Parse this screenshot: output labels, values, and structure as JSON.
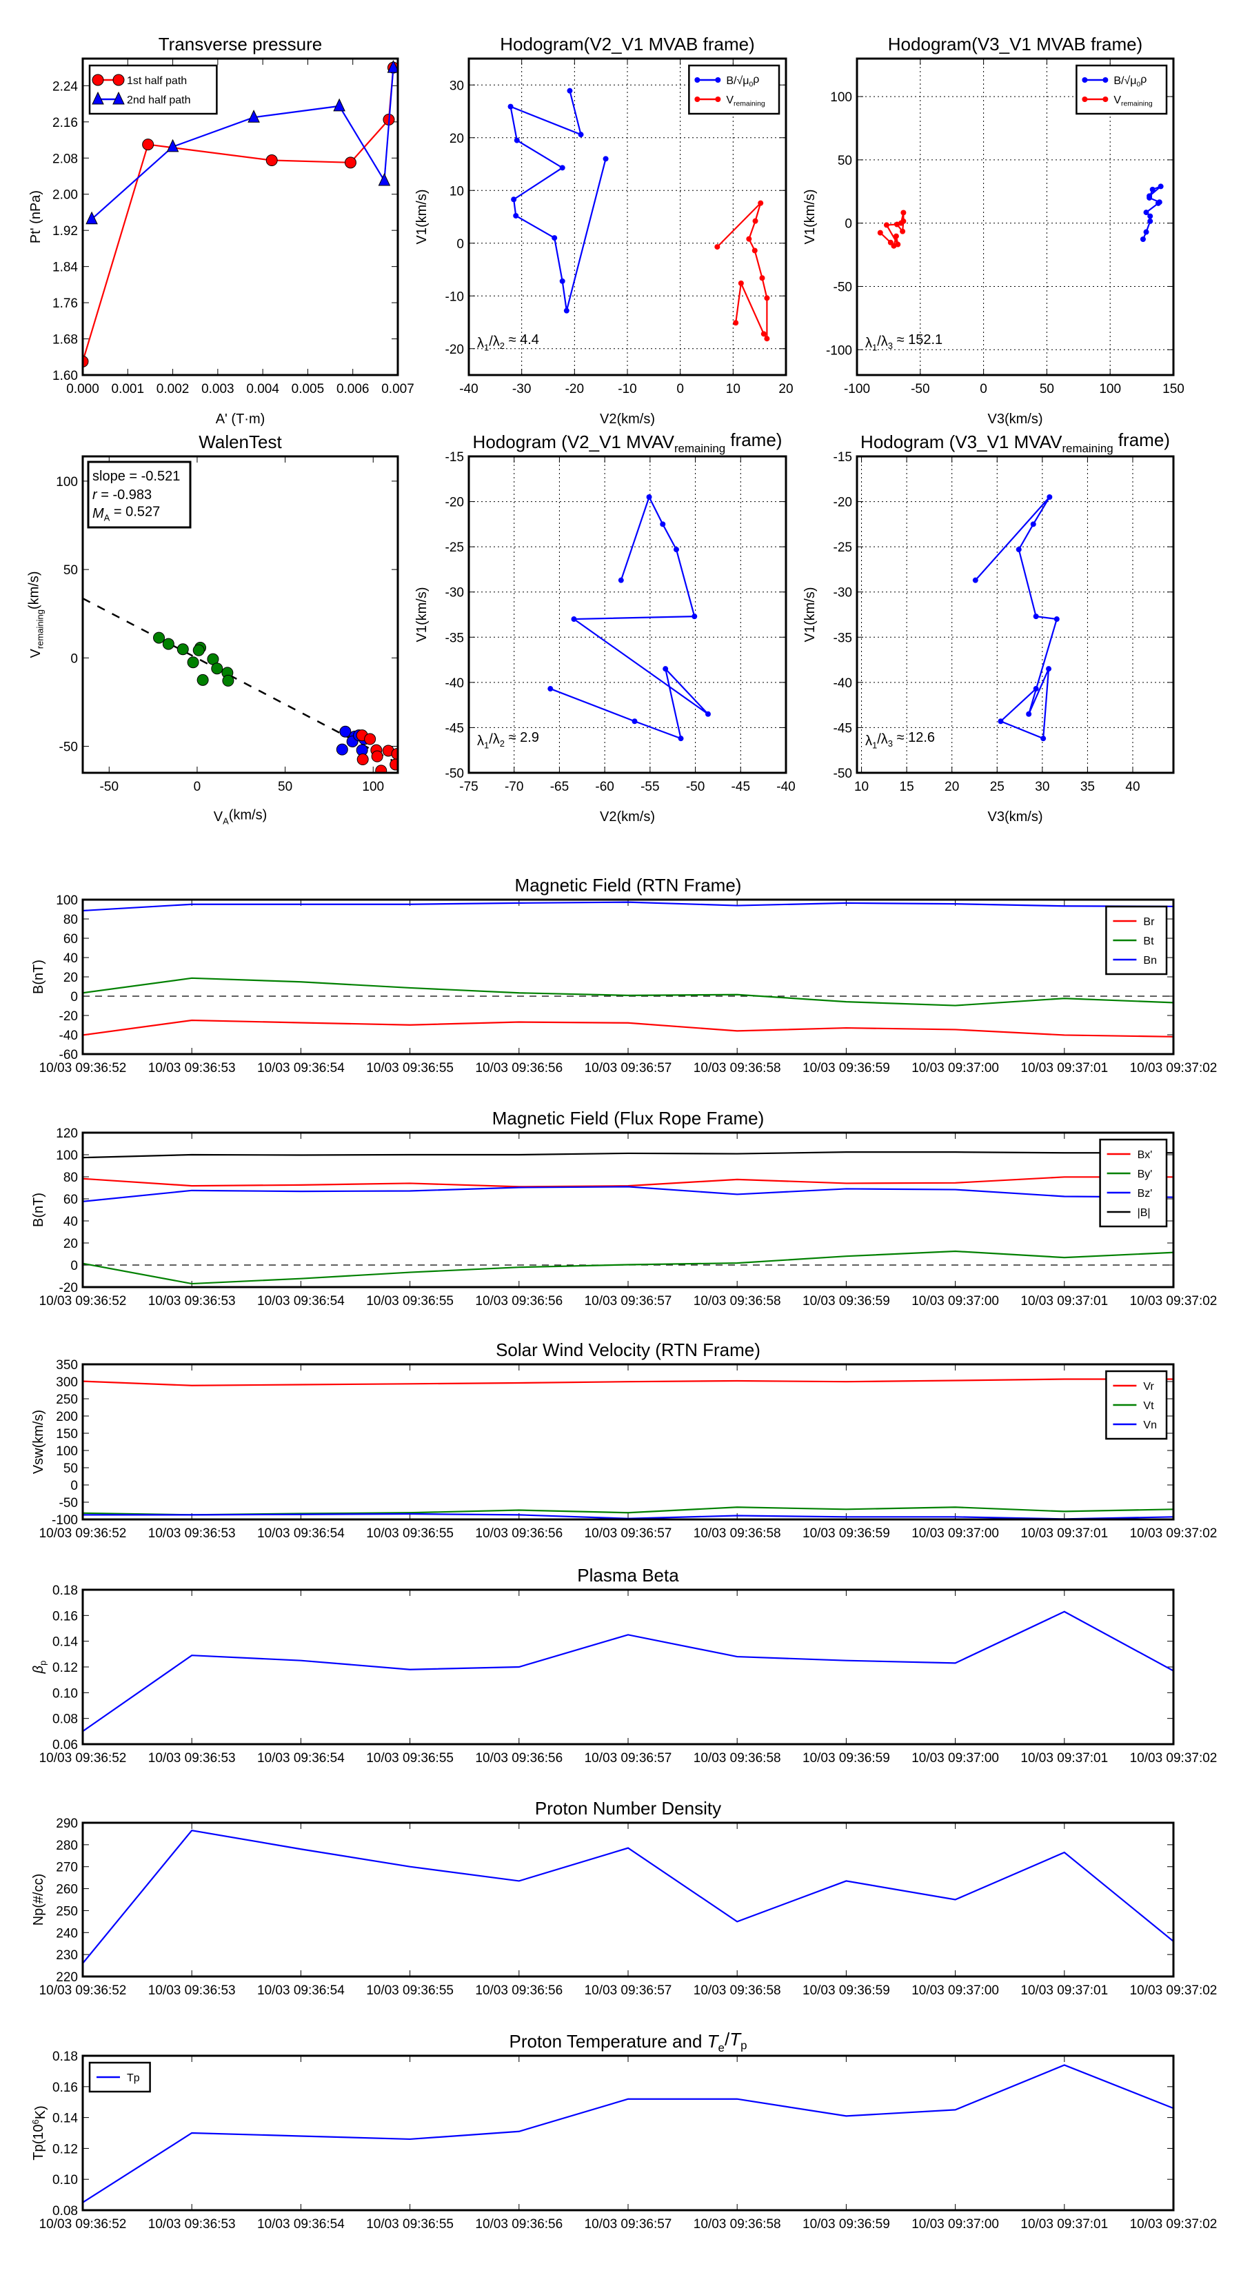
{
  "time_axis": [
    "10/03 09:36:52",
    "10/03 09:36:53",
    "10/03 09:36:54",
    "10/03 09:36:55",
    "10/03 09:36:56",
    "10/03 09:36:57",
    "10/03 09:36:58",
    "10/03 09:36:59",
    "10/03 09:37:00",
    "10/03 09:37:01",
    "10/03 09:37:02"
  ],
  "chart_data": [
    {
      "id": "tp",
      "type": "line",
      "title": "Transverse pressure",
      "xlabel": "A' (T·m)",
      "ylabel": "Pt' (nPa)",
      "xlim": [
        0,
        0.007
      ],
      "ylim": [
        1.6,
        2.3
      ],
      "grid": false,
      "legend": "top-left",
      "xticks": [
        "0.000",
        "0.001",
        "0.002",
        "0.003",
        "0.004",
        "0.005",
        "0.006",
        "0.007"
      ],
      "yticks": [
        "1.60",
        "1.68",
        "1.76",
        "1.84",
        "1.92",
        "2.00",
        "2.08",
        "2.16",
        "2.24"
      ],
      "series": [
        {
          "name": "1st half path",
          "color": "#ff0000",
          "marker": "o",
          "x": [
            0.0,
            0.00145,
            0.0042,
            0.00595,
            0.0068,
            0.0069
          ],
          "y": [
            1.63,
            2.11,
            2.075,
            2.07,
            2.165,
            2.28
          ]
        },
        {
          "name": "2nd half path",
          "color": "#0000ff",
          "marker": "^",
          "x": [
            0.0002,
            0.002,
            0.0038,
            0.0057,
            0.0067,
            0.0069
          ],
          "y": [
            1.945,
            2.105,
            2.17,
            2.195,
            2.03,
            2.28
          ]
        }
      ]
    },
    {
      "id": "h1",
      "type": "line",
      "title": "Hodogram(V2_V1 MVAB frame)",
      "xlabel": "V2(km/s)",
      "ylabel": "V1(km/s)",
      "xlim": [
        -40,
        20
      ],
      "ylim": [
        -25,
        35
      ],
      "grid": true,
      "legend": "top-right",
      "xticks": [
        "-40",
        "-30",
        "-20",
        "-10",
        "0",
        "10",
        "20"
      ],
      "yticks": [
        "-20",
        "-10",
        "0",
        "10",
        "20",
        "30"
      ],
      "annotation": [
        {
          "t": "λ"
        },
        {
          "t": "1",
          "s": "sub"
        },
        {
          "t": "/λ"
        },
        {
          "t": "2",
          "s": "sub"
        },
        {
          "t": " ≈ 4.4"
        }
      ],
      "series": [
        {
          "name": [
            {
              "t": "B/√μ"
            },
            {
              "t": "0",
              "s": "sub"
            },
            {
              "t": "ρ"
            }
          ],
          "color": "#0000ff",
          "marker": ".",
          "x": [
            -20.9,
            -18.8,
            -32.1,
            -30.9,
            -22.3,
            -31.5,
            -31.1,
            -23.8,
            -22.3,
            -21.5,
            -14.1
          ],
          "y": [
            28.9,
            20.6,
            25.9,
            19.5,
            14.3,
            8.3,
            5.2,
            1.0,
            -7.2,
            -12.8,
            16.0
          ]
        },
        {
          "name": [
            {
              "t": "V"
            },
            {
              "t": "remaining",
              "s": "sub"
            }
          ],
          "color": "#ff0000",
          "marker": ".",
          "x": [
            7.0,
            15.2,
            14.2,
            13.0,
            14.1,
            15.5,
            16.4,
            16.4,
            15.8,
            11.5,
            10.5
          ],
          "y": [
            -0.7,
            7.6,
            4.2,
            0.8,
            -1.4,
            -6.6,
            -10.4,
            -18.1,
            -17.2,
            -7.6,
            -15.1
          ]
        }
      ]
    },
    {
      "id": "h2",
      "type": "line",
      "title": "Hodogram(V3_V1 MVAB frame)",
      "xlabel": "V3(km/s)",
      "ylabel": "V1(km/s)",
      "xlim": [
        -100,
        150
      ],
      "ylim": [
        -120,
        130
      ],
      "grid": true,
      "legend": "top-right",
      "xticks": [
        "-100",
        "-50",
        "0",
        "50",
        "100",
        "150"
      ],
      "yticks": [
        "-100",
        "-50",
        "0",
        "50",
        "100"
      ],
      "annotation": [
        {
          "t": "λ"
        },
        {
          "t": "1",
          "s": "sub"
        },
        {
          "t": "/λ"
        },
        {
          "t": "3",
          "s": "sub"
        },
        {
          "t": " ≈ 152.1"
        }
      ],
      "series": [
        {
          "name": [
            {
              "t": "B/√μ"
            },
            {
              "t": "0",
              "s": "sub"
            },
            {
              "t": "ρ"
            }
          ],
          "color": "#0000ff",
          "marker": ".",
          "x": [
            126,
            128.5,
            131.6,
            131.6,
            128.5,
            138,
            139,
            131,
            133.5,
            140,
            131
          ],
          "y": [
            -12.7,
            -7,
            1.5,
            5.5,
            8.5,
            15.7,
            16.6,
            20,
            26.6,
            29,
            21.4
          ]
        },
        {
          "name": [
            {
              "t": "V"
            },
            {
              "t": "remaining",
              "s": "sub"
            }
          ],
          "color": "#ff0000",
          "marker": ".",
          "x": [
            -81.6,
            -73.4,
            -70.9,
            -69,
            -67.7,
            -76.6,
            -68.4,
            -64,
            -63.3,
            -63.3,
            -65.2
          ],
          "y": [
            -7.6,
            -15.3,
            -18,
            -10.3,
            -16.8,
            -1.5,
            -1,
            -6.5,
            1.5,
            8.3,
            0
          ]
        }
      ]
    },
    {
      "id": "walen",
      "type": "scatter",
      "title": "WalenTest",
      "xlabel": [
        {
          "t": "V"
        },
        {
          "t": "A",
          "s": "sub"
        },
        {
          "t": "(km/s)"
        }
      ],
      "ylabel": [
        {
          "t": "V"
        },
        {
          "t": "remaining",
          "s": "sub"
        },
        {
          "t": "(km/s)"
        }
      ],
      "xlim": [
        -65,
        114
      ],
      "ylim": [
        -65,
        114
      ],
      "grid": false,
      "xticks": [
        "-50",
        "0",
        "50",
        "100"
      ],
      "yticks": [
        "-50",
        "0",
        "50",
        "100"
      ],
      "fit": {
        "slope": -0.521,
        "intercept": -0.2,
        "color": "#000000"
      },
      "textbox": [
        [
          {
            "t": "slope = -0.521"
          }
        ],
        [
          {
            "t": "r",
            "i": true
          },
          {
            "t": " = -0.983"
          }
        ],
        [
          {
            "t": "M",
            "i": true
          },
          {
            "t": "A",
            "s": "sub"
          },
          {
            "t": " = 0.527"
          }
        ]
      ],
      "series": [
        {
          "name": "green-points",
          "color": "#008000",
          "marker": "o",
          "line": false,
          "x": [
            -21.7,
            -16.3,
            -8.1,
            1.8,
            0.9,
            -2.3,
            9,
            11.3,
            17.2,
            17.6,
            3.2
          ],
          "y": [
            11.4,
            7.9,
            4.9,
            5.8,
            4.3,
            -2.5,
            -0.7,
            -6,
            -8.4,
            -12.9,
            -12.5
          ]
        },
        {
          "name": "blue-points",
          "color": "#0000ff",
          "marker": "o",
          "line": false,
          "x": [
            84.2,
            89.6,
            88.2,
            95,
            82.4,
            93.7,
            91.9
          ],
          "y": [
            -41.7,
            -44.5,
            -47.3,
            -45.9,
            -51.8,
            -52.2,
            -43.8
          ]
        },
        {
          "name": "red-points",
          "color": "#ff0000",
          "marker": "o",
          "line": false,
          "x": [
            93.7,
            98.2,
            101.8,
            102.3,
            108.6,
            94.1,
            113.6,
            112.7,
            104.5
          ],
          "y": [
            -43.8,
            -45.9,
            -52.2,
            -55.7,
            -52.5,
            -57.4,
            -54.3,
            -60.3,
            -63.8
          ]
        }
      ]
    },
    {
      "id": "h3",
      "type": "line",
      "title": [
        {
          "t": "Hodogram (V2_V1 MVAV"
        },
        {
          "t": "remaining",
          "s": "sub"
        },
        {
          "t": " frame)"
        }
      ],
      "xlabel": "V2(km/s)",
      "ylabel": "V1(km/s)",
      "xlim": [
        -75,
        -40
      ],
      "ylim": [
        -50,
        -15
      ],
      "grid": true,
      "xticks": [
        "-75",
        "-70",
        "-65",
        "-60",
        "-55",
        "-50",
        "-45",
        "-40"
      ],
      "yticks": [
        "-50",
        "-45",
        "-40",
        "-35",
        "-30",
        "-25",
        "-20",
        "-15"
      ],
      "annotation": [
        {
          "t": "λ"
        },
        {
          "t": "1",
          "s": "sub"
        },
        {
          "t": "/λ"
        },
        {
          "t": "2",
          "s": "sub"
        },
        {
          "t": " ≈ 2.9"
        }
      ],
      "series": [
        {
          "name": "hodogram-v2-v1",
          "color": "#0000ff",
          "marker": ".",
          "x": [
            -58.2,
            -55.1,
            -53.6,
            -52.1,
            -50.1,
            -63.4,
            -48.6,
            -53.3,
            -51.6,
            -56.7,
            -66
          ],
          "y": [
            -28.7,
            -19.5,
            -22.5,
            -25.3,
            -32.7,
            -33.0,
            -43.5,
            -38.5,
            -46.2,
            -44.3,
            -40.7
          ]
        }
      ]
    },
    {
      "id": "h4",
      "type": "line",
      "title": [
        {
          "t": "Hodogram (V3_V1 MVAV"
        },
        {
          "t": "remaining",
          "s": "sub"
        },
        {
          "t": " frame)"
        }
      ],
      "xlabel": "V3(km/s)",
      "ylabel": "V1(km/s)",
      "xlim": [
        9.5,
        44.5
      ],
      "ylim": [
        -50,
        -15
      ],
      "grid": true,
      "xticks": [
        "10",
        "15",
        "20",
        "25",
        "30",
        "35",
        "40"
      ],
      "yticks": [
        "-50",
        "-45",
        "-40",
        "-35",
        "-30",
        "-25",
        "-20",
        "-15"
      ],
      "annotation": [
        {
          "t": "λ"
        },
        {
          "t": "1",
          "s": "sub"
        },
        {
          "t": "/λ"
        },
        {
          "t": "3",
          "s": "sub"
        },
        {
          "t": " ≈ 12.6"
        }
      ],
      "series": [
        {
          "name": "hodogram-v3-v1",
          "color": "#0000ff",
          "marker": ".",
          "x": [
            22.6,
            30.8,
            29,
            27.4,
            29.3,
            31.6,
            28.5,
            30.7,
            30.1,
            25.4,
            29.3
          ],
          "y": [
            -28.7,
            -19.5,
            -22.5,
            -25.3,
            -32.7,
            -33.0,
            -43.5,
            -38.5,
            -46.2,
            -44.3,
            -40.7
          ]
        }
      ]
    },
    {
      "id": "mf_rtn",
      "type": "line",
      "timeseries": true,
      "title": "Magnetic Field (RTN Frame)",
      "ylabel": "B(nT)",
      "ylim": [
        -60,
        100
      ],
      "zero_line": true,
      "legend": "top-right",
      "yticks": [
        "-60",
        "-40",
        "-20",
        "0",
        "20",
        "40",
        "60",
        "80",
        "100"
      ],
      "series": [
        {
          "name": "Br",
          "color": "#ff0000",
          "y": [
            -40.3,
            -25,
            -27.5,
            -29.8,
            -26.8,
            -27.7,
            -36,
            -32.9,
            -34.6,
            -40.3,
            -42
          ]
        },
        {
          "name": "Bt",
          "color": "#008000",
          "y": [
            3.4,
            18.7,
            14.8,
            8.6,
            3.4,
            0.8,
            1.6,
            -5.8,
            -9.7,
            -2.3,
            -6.7
          ]
        },
        {
          "name": "Bn",
          "color": "#0000ff",
          "y": [
            88.6,
            95.2,
            95.2,
            95.2,
            96.5,
            97.4,
            93.9,
            96.5,
            95.6,
            93.4,
            93
          ]
        }
      ]
    },
    {
      "id": "mf_fr",
      "type": "line",
      "timeseries": true,
      "title": "Magnetic Field (Flux Rope Frame)",
      "ylabel": "B(nT)",
      "ylim": [
        -20,
        120
      ],
      "zero_line": true,
      "legend": "top-right",
      "yticks": [
        "-20",
        "0",
        "20",
        "40",
        "60",
        "80",
        "100",
        "120"
      ],
      "series": [
        {
          "name": "Bx'",
          "color": "#ff0000",
          "y": [
            78.3,
            71.8,
            72.6,
            74.1,
            71,
            71.8,
            77.6,
            74.1,
            74.5,
            79.8,
            79.8
          ]
        },
        {
          "name": "By'",
          "color": "#008000",
          "y": [
            1.4,
            -16.9,
            -12.3,
            -6.6,
            -2,
            0.3,
            1.8,
            8,
            12.5,
            6.8,
            11.4
          ]
        },
        {
          "name": "Bz'",
          "color": "#0000ff",
          "y": [
            57.6,
            67.6,
            66.8,
            67.2,
            70.3,
            71,
            64.1,
            69.1,
            68.4,
            62.2,
            61.5
          ]
        },
        {
          "name": "|B|",
          "color": "#000000",
          "y": [
            97.4,
            100,
            99.7,
            100,
            100,
            101.3,
            100.9,
            102.4,
            102.4,
            101.7,
            101.7
          ]
        }
      ]
    },
    {
      "id": "vel",
      "type": "line",
      "timeseries": true,
      "title": "Solar Wind Velocity (RTN Frame)",
      "ylabel": "Vsw(km/s)",
      "ylim": [
        -100,
        350
      ],
      "legend": "top-right",
      "yticks": [
        "-100",
        "-50",
        "0",
        "50",
        "100",
        "150",
        "200",
        "250",
        "300",
        "350"
      ],
      "series": [
        {
          "name": "Vr",
          "color": "#ff0000",
          "y": [
            300.8,
            288.5,
            291,
            293.4,
            296,
            299.6,
            302,
            299.6,
            303,
            307,
            307
          ]
        },
        {
          "name": "Vt",
          "color": "#008000",
          "y": [
            -81.6,
            -86.7,
            -83,
            -80.5,
            -73,
            -80.5,
            -64.5,
            -70.6,
            -64.5,
            -76.8,
            -70.6
          ]
        },
        {
          "name": "Vn",
          "color": "#0000ff",
          "y": [
            -86.7,
            -86.7,
            -85.5,
            -84,
            -86.7,
            -97.5,
            -89,
            -92.6,
            -92.6,
            -98.8,
            -92.6
          ]
        }
      ]
    },
    {
      "id": "beta",
      "type": "line",
      "timeseries": true,
      "title": "Plasma Beta",
      "ylabel": [
        {
          "t": "β",
          "i": true
        },
        {
          "t": "p",
          "s": "sub"
        }
      ],
      "ylim": [
        0.06,
        0.18
      ],
      "yticks": [
        "0.06",
        "0.08",
        "0.10",
        "0.12",
        "0.14",
        "0.16",
        "0.18"
      ],
      "series": [
        {
          "name": "beta",
          "color": "#0000ff",
          "y": [
            0.07,
            0.129,
            0.125,
            0.118,
            0.12,
            0.145,
            0.128,
            0.125,
            0.123,
            0.163,
            0.117
          ]
        }
      ]
    },
    {
      "id": "np",
      "type": "line",
      "timeseries": true,
      "title": "Proton Number Density",
      "ylabel": "Np(#/cc)",
      "ylim": [
        220,
        290
      ],
      "yticks": [
        "220",
        "230",
        "240",
        "250",
        "260",
        "270",
        "280",
        "290"
      ],
      "series": [
        {
          "name": "Np",
          "color": "#0000ff",
          "y": [
            226,
            286.5,
            278,
            270,
            263.5,
            278.5,
            245,
            263.5,
            255,
            276.5,
            236
          ]
        }
      ]
    },
    {
      "id": "temp",
      "type": "line",
      "timeseries": true,
      "title": [
        {
          "t": "Proton Temperature and "
        },
        {
          "t": "T",
          "i": true
        },
        {
          "t": "e",
          "s": "sub"
        },
        {
          "t": "/"
        },
        {
          "t": "T",
          "i": true
        },
        {
          "t": "p",
          "s": "sub"
        }
      ],
      "ylabel": [
        {
          "t": "Tp(10"
        },
        {
          "t": "6",
          "s": "sup"
        },
        {
          "t": "K)"
        }
      ],
      "ylim": [
        0.08,
        0.18
      ],
      "legend": "top-left",
      "yticks": [
        "0.08",
        "0.10",
        "0.12",
        "0.14",
        "0.16",
        "0.18"
      ],
      "series": [
        {
          "name": "Tp",
          "color": "#0000ff",
          "y": [
            0.085,
            0.13,
            0.128,
            0.126,
            0.131,
            0.152,
            0.152,
            0.141,
            0.145,
            0.174,
            0.146
          ]
        }
      ]
    }
  ]
}
